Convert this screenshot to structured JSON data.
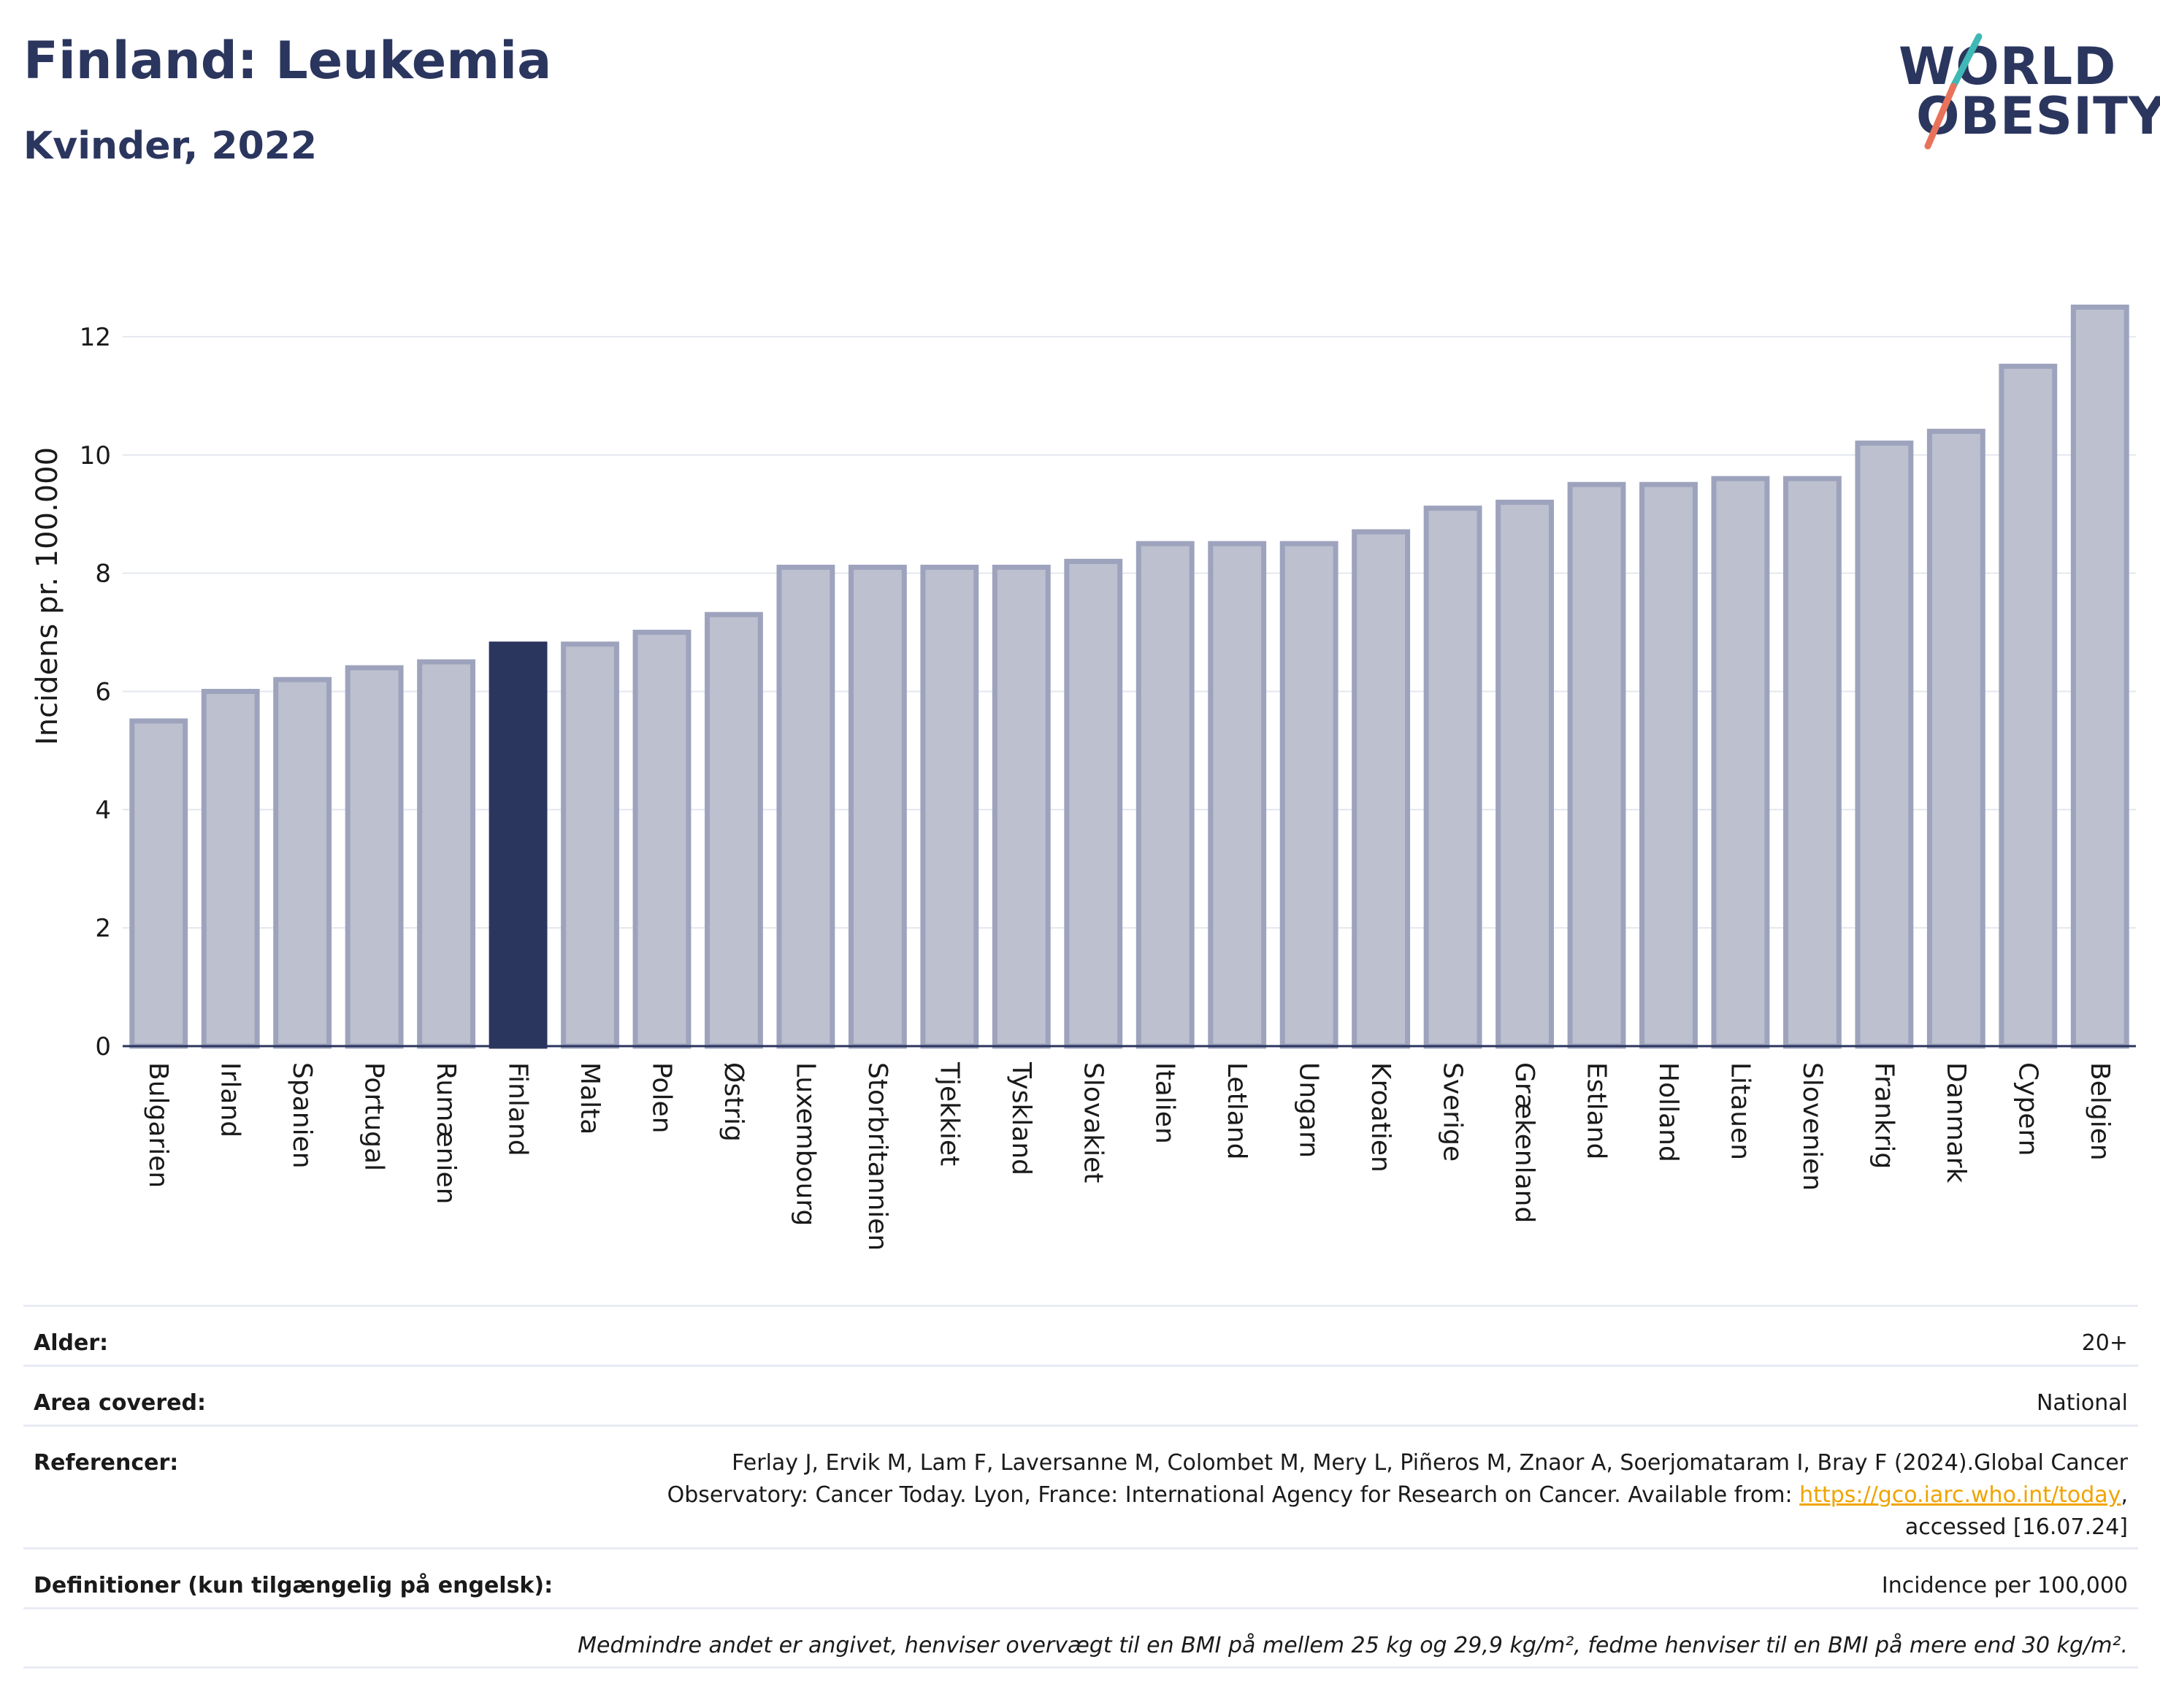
{
  "header": {
    "title": "Finland: Leukemia",
    "subtitle": "Kvinder, 2022"
  },
  "logo": {
    "line1": "WORLD",
    "line2": "OBESITY"
  },
  "chart_data": {
    "type": "bar",
    "ylabel": "Incidens pr. 100.000",
    "xlabel": "",
    "ylim": [
      0,
      13
    ],
    "yticks": [
      0,
      2,
      4,
      6,
      8,
      10,
      12
    ],
    "grid": true,
    "highlight": "Finland",
    "colors": {
      "bar": "#bcc0cf",
      "bar_edge": "#9ea3bd",
      "highlight": "#2b365f",
      "grid": "#e4e7ef",
      "axis": "#2b365f"
    },
    "categories": [
      "Bulgarien",
      "Irland",
      "Spanien",
      "Portugal",
      "Rumænien",
      "Finland",
      "Malta",
      "Polen",
      "Østrig",
      "Luxembourg",
      "Storbritannien",
      "Tjekkiet",
      "Tyskland",
      "Slovakiet",
      "Italien",
      "Letland",
      "Ungarn",
      "Kroatien",
      "Sverige",
      "Grækenland",
      "Estland",
      "Holland",
      "Litauen",
      "Slovenien",
      "Frankrig",
      "Danmark",
      "Cypern",
      "Belgien"
    ],
    "values": [
      5.5,
      6.0,
      6.2,
      6.4,
      6.5,
      6.8,
      6.8,
      7.0,
      7.3,
      8.1,
      8.1,
      8.1,
      8.1,
      8.2,
      8.5,
      8.5,
      8.5,
      8.7,
      9.1,
      9.2,
      9.5,
      9.5,
      9.6,
      9.6,
      10.2,
      10.4,
      11.5,
      12.5
    ]
  },
  "meta": {
    "age_label": "Alder:",
    "age_value": "20+",
    "area_label": "Area covered:",
    "area_value": "National",
    "ref_label": "Referencer:",
    "ref_text_before": "Ferlay J, Ervik M, Lam F, Laversanne M, Colombet M, Mery L, Piñeros M, Znaor A, Soerjomataram I, Bray F (2024).Global Cancer Observatory: Cancer Today. Lyon, France: International Agency for Research on Cancer. Available from: ",
    "ref_link": "https://gco.iarc.who.int/today",
    "ref_text_after": ", accessed [16.07.24]",
    "def_label": "Definitioner (kun tilgængelig på engelsk):",
    "def_value": "Incidence per 100,000",
    "note": "Medmindre andet er angivet, henviser overvægt til en BMI på mellem 25 kg og 29,9 kg/m², fedme henviser til en BMI på mere end 30 kg/m²."
  }
}
